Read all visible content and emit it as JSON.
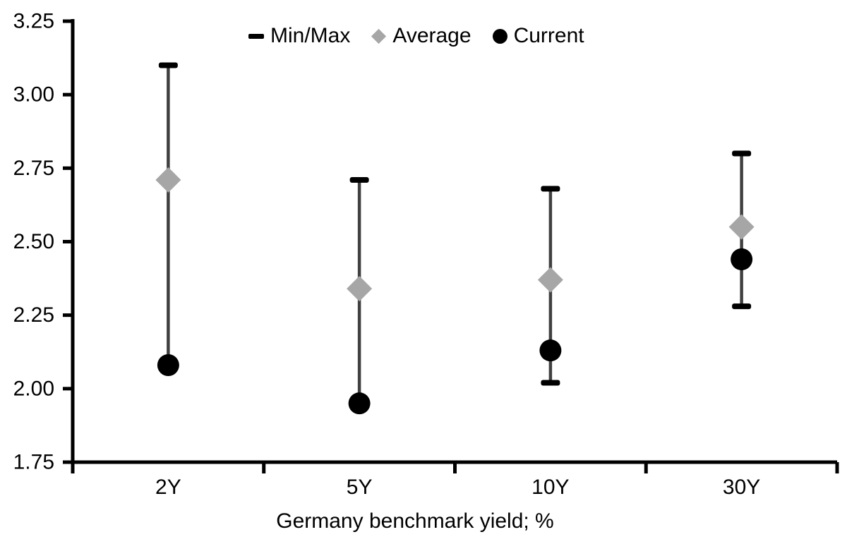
{
  "chart_data": {
    "type": "scatter",
    "subtype": "range-min-max-average-current",
    "title": "",
    "xlabel": "Germany benchmark yield; %",
    "ylabel": "",
    "categories": [
      "2Y",
      "5Y",
      "10Y",
      "30Y"
    ],
    "ylim": [
      1.75,
      3.25
    ],
    "ytick_step": 0.25,
    "ytick_labels": [
      "1.75",
      "2.00",
      "2.25",
      "2.50",
      "2.75",
      "3.00",
      "3.25"
    ],
    "grid": false,
    "legend_position": "top-center",
    "series": [
      {
        "name": "Min/Max",
        "marker": "errorbar",
        "min": [
          2.08,
          1.95,
          2.02,
          2.28
        ],
        "max": [
          3.1,
          2.71,
          2.68,
          2.8
        ]
      },
      {
        "name": "Average",
        "marker": "diamond",
        "values": [
          2.71,
          2.34,
          2.37,
          2.55
        ]
      },
      {
        "name": "Current",
        "marker": "circle",
        "values": [
          2.08,
          1.95,
          2.13,
          2.44
        ]
      }
    ],
    "colors": {
      "background": "#ffffff",
      "axis": "#000000",
      "text": "#000000",
      "errorbar_line": "#404040",
      "errorbar_cap": "#000000",
      "average": "#a6a6a6",
      "current": "#000000"
    }
  }
}
